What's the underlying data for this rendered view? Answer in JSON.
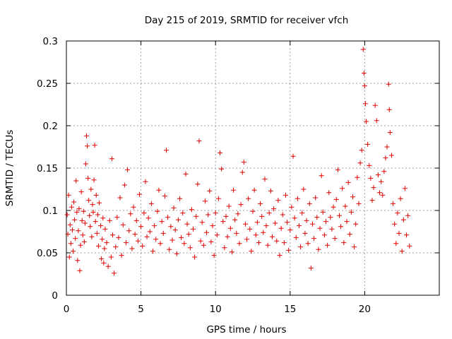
{
  "chart_data": {
    "type": "scatter",
    "title": "Day 215 of 2019, SRMTID for receiver vfch",
    "xlabel": "GPS time / hours",
    "ylabel": "SRMTID / TECUs",
    "xlim": [
      0,
      25
    ],
    "ylim": [
      0,
      0.3
    ],
    "x_ticks": [
      "0",
      "5",
      "10",
      "15",
      "20"
    ],
    "y_ticks": [
      "0",
      "0.05",
      "0.1",
      "0.15",
      "0.2",
      "0.25",
      "0.3"
    ],
    "grid": true,
    "marker": "+",
    "series": [
      {
        "name": "SRMTID",
        "color": "#e00000",
        "points": [
          [
            0.05,
            0.095
          ],
          [
            0.1,
            0.072
          ],
          [
            0.15,
            0.118
          ],
          [
            0.2,
            0.045
          ],
          [
            0.25,
            0.083
          ],
          [
            0.3,
            0.061
          ],
          [
            0.35,
            0.104
          ],
          [
            0.4,
            0.077
          ],
          [
            0.45,
            0.052
          ],
          [
            0.5,
            0.11
          ],
          [
            0.55,
            0.089
          ],
          [
            0.6,
            0.067
          ],
          [
            0.65,
            0.135
          ],
          [
            0.7,
            0.098
          ],
          [
            0.75,
            0.041
          ],
          [
            0.8,
            0.076
          ],
          [
            0.85,
            0.102
          ],
          [
            0.9,
            0.029
          ],
          [
            0.95,
            0.059
          ],
          [
            1.0,
            0.122
          ],
          [
            1.05,
            0.088
          ],
          [
            1.1,
            0.071
          ],
          [
            1.15,
            0.099
          ],
          [
            1.2,
            0.063
          ],
          [
            1.25,
            0.085
          ],
          [
            1.3,
            0.155
          ],
          [
            1.35,
            0.188
          ],
          [
            1.4,
            0.176
          ],
          [
            1.45,
            0.138
          ],
          [
            1.5,
            0.112
          ],
          [
            1.55,
            0.094
          ],
          [
            1.6,
            0.081
          ],
          [
            1.65,
            0.125
          ],
          [
            1.7,
            0.069
          ],
          [
            1.75,
            0.107
          ],
          [
            1.8,
            0.098
          ],
          [
            1.85,
            0.136
          ],
          [
            1.9,
            0.177
          ],
          [
            1.95,
            0.087
          ],
          [
            2.0,
            0.118
          ],
          [
            2.05,
            0.073
          ],
          [
            2.1,
            0.095
          ],
          [
            2.15,
            0.058
          ],
          [
            2.2,
            0.109
          ],
          [
            2.3,
            0.082
          ],
          [
            2.35,
            0.043
          ],
          [
            2.4,
            0.066
          ],
          [
            2.45,
            0.091
          ],
          [
            2.5,
            0.038
          ],
          [
            2.55,
            0.055
          ],
          [
            2.6,
            0.078
          ],
          [
            2.7,
            0.062
          ],
          [
            2.8,
            0.034
          ],
          [
            2.9,
            0.088
          ],
          [
            3.0,
            0.045
          ],
          [
            3.05,
            0.161
          ],
          [
            3.1,
            0.071
          ],
          [
            3.2,
            0.026
          ],
          [
            3.3,
            0.057
          ],
          [
            3.4,
            0.092
          ],
          [
            3.5,
            0.068
          ],
          [
            3.6,
            0.115
          ],
          [
            3.7,
            0.047
          ],
          [
            3.8,
            0.083
          ],
          [
            3.9,
            0.13
          ],
          [
            4.0,
            0.062
          ],
          [
            4.1,
            0.148
          ],
          [
            4.2,
            0.076
          ],
          [
            4.3,
            0.096
          ],
          [
            4.4,
            0.055
          ],
          [
            4.5,
            0.104
          ],
          [
            4.6,
            0.072
          ],
          [
            4.7,
            0.088
          ],
          [
            4.8,
            0.064
          ],
          [
            4.9,
            0.119
          ],
          [
            5.0,
            0.081
          ],
          [
            5.1,
            0.058
          ],
          [
            5.2,
            0.097
          ],
          [
            5.3,
            0.134
          ],
          [
            5.4,
            0.069
          ],
          [
            5.5,
            0.091
          ],
          [
            5.6,
            0.075
          ],
          [
            5.7,
            0.108
          ],
          [
            5.8,
            0.052
          ],
          [
            5.9,
            0.082
          ],
          [
            6.0,
            0.066
          ],
          [
            6.1,
            0.099
          ],
          [
            6.2,
            0.124
          ],
          [
            6.3,
            0.061
          ],
          [
            6.4,
            0.087
          ],
          [
            6.5,
            0.073
          ],
          [
            6.6,
            0.117
          ],
          [
            6.7,
            0.171
          ],
          [
            6.8,
            0.092
          ],
          [
            6.9,
            0.054
          ],
          [
            7.0,
            0.081
          ],
          [
            7.1,
            0.065
          ],
          [
            7.2,
            0.103
          ],
          [
            7.3,
            0.077
          ],
          [
            7.4,
            0.049
          ],
          [
            7.5,
            0.089
          ],
          [
            7.6,
            0.114
          ],
          [
            7.7,
            0.068
          ],
          [
            7.8,
            0.097
          ],
          [
            7.9,
            0.061
          ],
          [
            8.0,
            0.143
          ],
          [
            8.1,
            0.084
          ],
          [
            8.2,
            0.072
          ],
          [
            8.3,
            0.056
          ],
          [
            8.4,
            0.101
          ],
          [
            8.5,
            0.078
          ],
          [
            8.6,
            0.045
          ],
          [
            8.7,
            0.093
          ],
          [
            8.8,
            0.131
          ],
          [
            8.9,
            0.182
          ],
          [
            9.0,
            0.064
          ],
          [
            9.1,
            0.086
          ],
          [
            9.2,
            0.059
          ],
          [
            9.3,
            0.111
          ],
          [
            9.4,
            0.074
          ],
          [
            9.5,
            0.095
          ],
          [
            9.6,
            0.123
          ],
          [
            9.7,
            0.063
          ],
          [
            9.8,
            0.082
          ],
          [
            9.9,
            0.047
          ],
          [
            10.0,
            0.097
          ],
          [
            10.1,
            0.071
          ],
          [
            10.2,
            0.114
          ],
          [
            10.3,
            0.168
          ],
          [
            10.4,
            0.149
          ],
          [
            10.5,
            0.087
          ],
          [
            10.6,
            0.056
          ],
          [
            10.7,
            0.093
          ],
          [
            10.8,
            0.069
          ],
          [
            10.9,
            0.105
          ],
          [
            11.0,
            0.079
          ],
          [
            11.1,
            0.051
          ],
          [
            11.2,
            0.124
          ],
          [
            11.3,
            0.089
          ],
          [
            11.4,
            0.073
          ],
          [
            11.5,
            0.096
          ],
          [
            11.6,
            0.061
          ],
          [
            11.7,
            0.107
          ],
          [
            11.8,
            0.145
          ],
          [
            11.9,
            0.157
          ],
          [
            12.0,
            0.084
          ],
          [
            12.1,
            0.066
          ],
          [
            12.2,
            0.114
          ],
          [
            12.3,
            0.078
          ],
          [
            12.4,
            0.052
          ],
          [
            12.5,
            0.099
          ],
          [
            12.6,
            0.124
          ],
          [
            12.7,
            0.071
          ],
          [
            12.8,
            0.086
          ],
          [
            12.9,
            0.062
          ],
          [
            13.0,
            0.108
          ],
          [
            13.1,
            0.093
          ],
          [
            13.2,
            0.074
          ],
          [
            13.3,
            0.137
          ],
          [
            13.4,
            0.082
          ],
          [
            13.5,
            0.059
          ],
          [
            13.6,
            0.097
          ],
          [
            13.7,
            0.123
          ],
          [
            13.8,
            0.069
          ],
          [
            13.9,
            0.102
          ],
          [
            14.0,
            0.085
          ],
          [
            14.1,
            0.064
          ],
          [
            14.2,
            0.112
          ],
          [
            14.3,
            0.047
          ],
          [
            14.4,
            0.079
          ],
          [
            14.5,
            0.095
          ],
          [
            14.6,
            0.062
          ],
          [
            14.7,
            0.118
          ],
          [
            14.8,
            0.086
          ],
          [
            14.9,
            0.053
          ],
          [
            15.0,
            0.077
          ],
          [
            15.1,
            0.104
          ],
          [
            15.2,
            0.164
          ],
          [
            15.3,
            0.091
          ],
          [
            15.4,
            0.068
          ],
          [
            15.5,
            0.114
          ],
          [
            15.6,
            0.082
          ],
          [
            15.7,
            0.057
          ],
          [
            15.8,
            0.097
          ],
          [
            15.9,
            0.125
          ],
          [
            16.0,
            0.073
          ],
          [
            16.1,
            0.088
          ],
          [
            16.2,
            0.061
          ],
          [
            16.3,
            0.108
          ],
          [
            16.4,
            0.032
          ],
          [
            16.5,
            0.084
          ],
          [
            16.6,
            0.067
          ],
          [
            16.7,
            0.115
          ],
          [
            16.8,
            0.092
          ],
          [
            16.9,
            0.054
          ],
          [
            17.0,
            0.079
          ],
          [
            17.1,
            0.141
          ],
          [
            17.2,
            0.098
          ],
          [
            17.3,
            0.071
          ],
          [
            17.4,
            0.087
          ],
          [
            17.5,
            0.059
          ],
          [
            17.6,
            0.121
          ],
          [
            17.7,
            0.092
          ],
          [
            17.8,
            0.078
          ],
          [
            17.9,
            0.104
          ],
          [
            18.0,
            0.067
          ],
          [
            18.1,
            0.113
          ],
          [
            18.2,
            0.148
          ],
          [
            18.3,
            0.094
          ],
          [
            18.4,
            0.081
          ],
          [
            18.5,
            0.126
          ],
          [
            18.6,
            0.062
          ],
          [
            18.7,
            0.105
          ],
          [
            18.8,
            0.087
          ],
          [
            18.9,
            0.133
          ],
          [
            19.0,
            0.072
          ],
          [
            19.1,
            0.098
          ],
          [
            19.2,
            0.116
          ],
          [
            19.3,
            0.057
          ],
          [
            19.4,
            0.084
          ],
          [
            19.5,
            0.139
          ],
          [
            19.6,
            0.108
          ],
          [
            19.7,
            0.156
          ],
          [
            19.8,
            0.171
          ],
          [
            19.9,
            0.29
          ],
          [
            19.95,
            0.262
          ],
          [
            20.0,
            0.247
          ],
          [
            20.05,
            0.226
          ],
          [
            20.1,
            0.205
          ],
          [
            20.2,
            0.178
          ],
          [
            20.3,
            0.153
          ],
          [
            20.4,
            0.138
          ],
          [
            20.5,
            0.112
          ],
          [
            20.6,
            0.127
          ],
          [
            20.7,
            0.224
          ],
          [
            20.8,
            0.206
          ],
          [
            20.9,
            0.142
          ],
          [
            21.0,
            0.121
          ],
          [
            21.1,
            0.134
          ],
          [
            21.2,
            0.118
          ],
          [
            21.3,
            0.146
          ],
          [
            21.4,
            0.162
          ],
          [
            21.5,
            0.175
          ],
          [
            21.6,
            0.249
          ],
          [
            21.65,
            0.219
          ],
          [
            21.7,
            0.192
          ],
          [
            21.8,
            0.165
          ],
          [
            21.9,
            0.108
          ],
          [
            22.0,
            0.084
          ],
          [
            22.1,
            0.061
          ],
          [
            22.2,
            0.097
          ],
          [
            22.3,
            0.073
          ],
          [
            22.4,
            0.114
          ],
          [
            22.5,
            0.052
          ],
          [
            22.6,
            0.089
          ],
          [
            22.7,
            0.126
          ],
          [
            22.8,
            0.071
          ],
          [
            22.9,
            0.094
          ],
          [
            23.0,
            0.058
          ]
        ]
      }
    ]
  }
}
